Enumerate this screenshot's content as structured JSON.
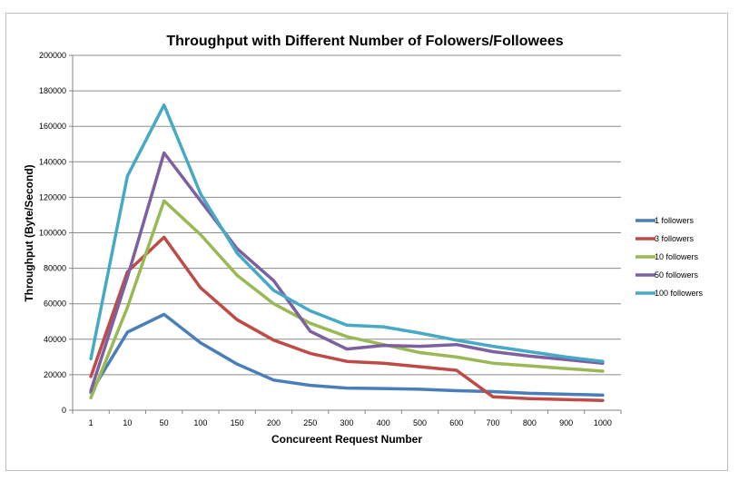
{
  "chart_data": {
    "type": "line",
    "title": "Throughput with Different Number of Folowers/Followees",
    "xlabel": "Concureent Request Number",
    "ylabel": "Throughput (Byte/Second)",
    "categories": [
      "1",
      "10",
      "50",
      "100",
      "150",
      "200",
      "250",
      "300",
      "400",
      "500",
      "600",
      "700",
      "800",
      "900",
      "1000"
    ],
    "ylim": [
      0,
      200000
    ],
    "yticks": [
      "0",
      "20000",
      "40000",
      "60000",
      "80000",
      "100000",
      "120000",
      "140000",
      "160000",
      "180000",
      "200000"
    ],
    "grid": true,
    "legend_position": "right",
    "series": [
      {
        "name": "1 followers",
        "color": "#4a7ebb",
        "values": [
          10000,
          44000,
          54000,
          38000,
          26000,
          17000,
          14000,
          12500,
          12200,
          11800,
          11000,
          10500,
          9500,
          9000,
          8500
        ]
      },
      {
        "name": "3 followers",
        "color": "#be4b48",
        "values": [
          19000,
          78000,
          97500,
          69000,
          51000,
          39500,
          32000,
          27500,
          26500,
          24500,
          22500,
          7500,
          6500,
          6000,
          5500
        ]
      },
      {
        "name": "10 followers",
        "color": "#98b954",
        "values": [
          7000,
          58000,
          118000,
          99000,
          76000,
          60000,
          49000,
          41500,
          37000,
          32500,
          30000,
          26500,
          25000,
          23500,
          22000
        ]
      },
      {
        "name": "50 followers",
        "color": "#7d60a0",
        "values": [
          11000,
          75000,
          145000,
          118000,
          91000,
          73000,
          44500,
          34500,
          36500,
          36000,
          37000,
          33000,
          30500,
          28500,
          26500
        ]
      },
      {
        "name": "100 followers",
        "color": "#46aac5",
        "values": [
          29000,
          132000,
          172000,
          122000,
          88500,
          67500,
          56000,
          48000,
          47000,
          43500,
          39500,
          36000,
          33000,
          30000,
          27500
        ]
      }
    ]
  }
}
